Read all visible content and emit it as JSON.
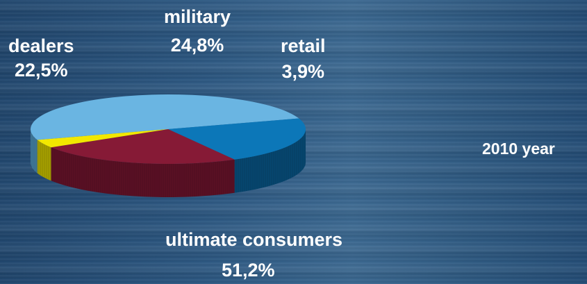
{
  "chart_data": {
    "type": "pie",
    "subtitle": "2010 year",
    "slices": [
      {
        "label": "ultimate consumers",
        "value": 51.2,
        "value_text": "51,2%",
        "color": "#6ab5e2",
        "side_color": "#3f7799"
      },
      {
        "label": "dealers",
        "value": 22.5,
        "value_text": "22,5%",
        "color": "#0c77b8",
        "side_color": "#06466f"
      },
      {
        "label": "military",
        "value": 24.8,
        "value_text": "24,8%",
        "color": "#861a36",
        "side_color": "#5a1024"
      },
      {
        "label": "retail",
        "value": 3.9,
        "value_text": "3,9%",
        "color": "#f2e800",
        "side_color": "#a49e00"
      }
    ]
  }
}
